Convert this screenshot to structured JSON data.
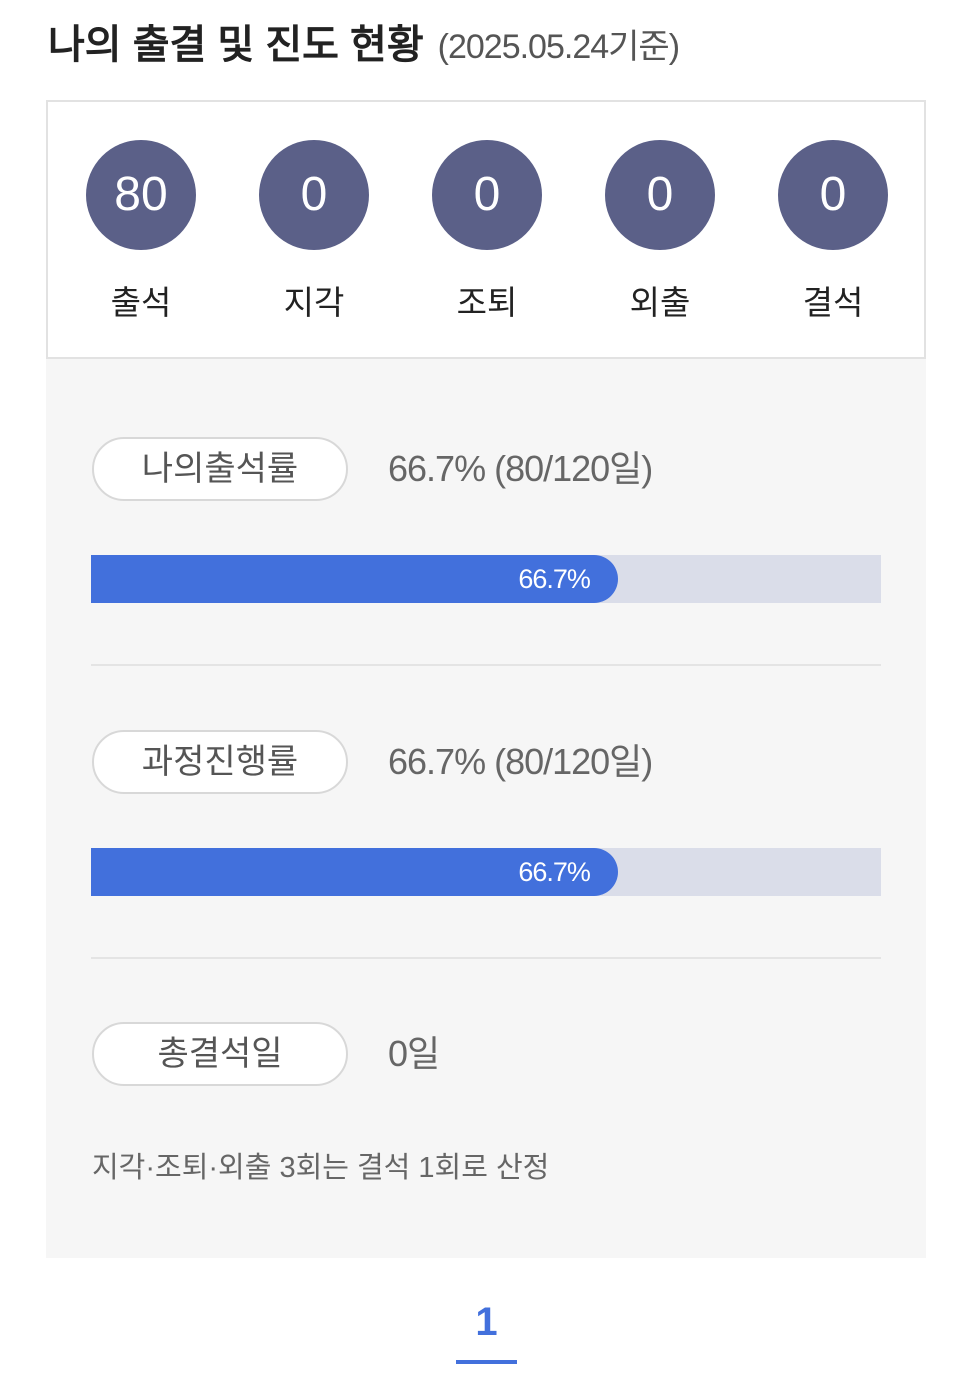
{
  "header": {
    "title": "나의 출결 및 진도 현황",
    "date": "(2025.05.24기준)"
  },
  "counts": [
    {
      "value": "80",
      "label": "출석"
    },
    {
      "value": "0",
      "label": "지각"
    },
    {
      "value": "0",
      "label": "조퇴"
    },
    {
      "value": "0",
      "label": "외출"
    },
    {
      "value": "0",
      "label": "결석"
    }
  ],
  "attendance": {
    "label": "나의출석률",
    "value": "66.7% (80/120일)",
    "bar_label": "66.7%",
    "percent": 66.7
  },
  "progress": {
    "label": "과정진행률",
    "value": "66.7% (80/120일)",
    "bar_label": "66.7%",
    "percent": 66.7
  },
  "absence": {
    "label": "총결석일",
    "value": "0일"
  },
  "note": "지각·조퇴·외출 3회는 결석 1회로 산정",
  "pagination": {
    "current": "1"
  },
  "colors": {
    "circle": "#5b6088",
    "bar_fill": "#4270dc",
    "bar_track": "#dadde9"
  }
}
